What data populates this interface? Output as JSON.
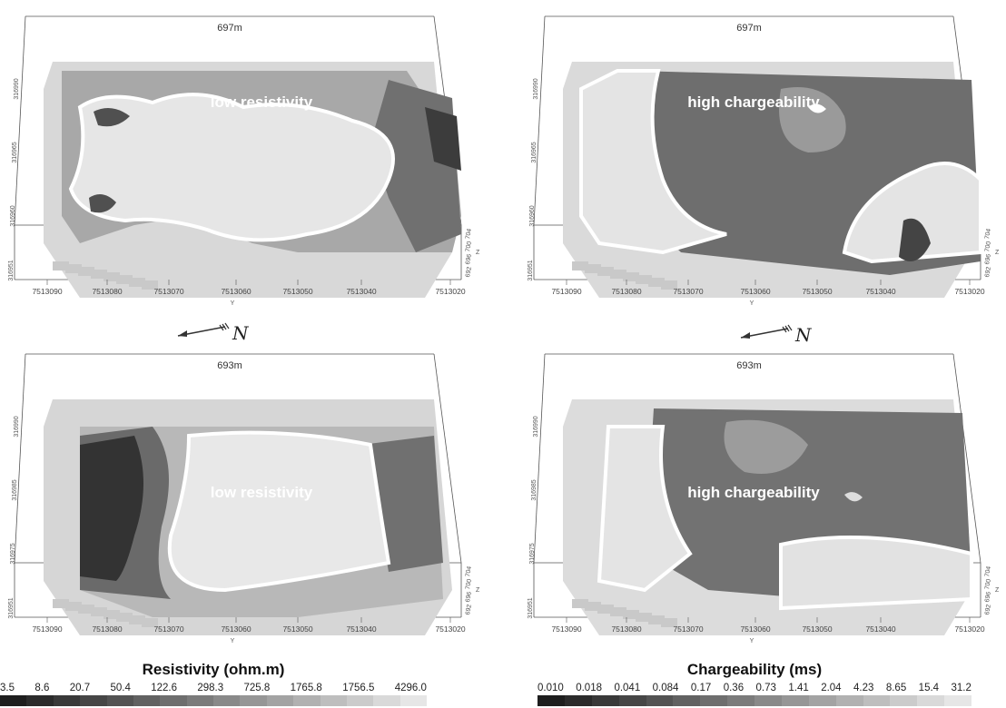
{
  "panels": [
    {
      "depth": "697m",
      "zone_label": "low resistivity",
      "x_ticks": [
        "7513090",
        "7513080",
        "7513070",
        "7513060",
        "7513050",
        "7513040",
        "7513020"
      ],
      "x_axis": "Y",
      "y_ticks": [
        "316951",
        "316960",
        "316965",
        "316990"
      ],
      "z_ticks": [
        "704",
        "700",
        "696",
        "692"
      ],
      "z_axis": "Z"
    },
    {
      "depth": "697m",
      "zone_label": "high chargeability",
      "x_ticks": [
        "7513090",
        "7513080",
        "7513070",
        "7513060",
        "7513050",
        "7513040",
        "7513020"
      ],
      "x_axis": "Y",
      "y_ticks": [
        "316951",
        "316960",
        "316965",
        "316990"
      ],
      "z_ticks": [
        "704",
        "700",
        "696",
        "692"
      ],
      "z_axis": "Z"
    },
    {
      "depth": "693m",
      "zone_label": "low resistivity",
      "x_ticks": [
        "7513090",
        "7513080",
        "7513070",
        "7513060",
        "7513050",
        "7513040",
        "7513020"
      ],
      "x_axis": "Y",
      "y_ticks": [
        "316951",
        "316975",
        "316985",
        "316990"
      ],
      "z_ticks": [
        "704",
        "700",
        "696",
        "692"
      ],
      "z_axis": "Z"
    },
    {
      "depth": "693m",
      "zone_label": "high chargeability",
      "x_ticks": [
        "7513090",
        "7513080",
        "7513070",
        "7513060",
        "7513050",
        "7513040",
        "7513020"
      ],
      "x_axis": "Y",
      "y_ticks": [
        "316951",
        "316975",
        "316985",
        "316990"
      ],
      "z_ticks": [
        "704",
        "700",
        "696",
        "692"
      ],
      "z_axis": "Z"
    }
  ],
  "north_arrow": {
    "label": "N"
  },
  "legends": [
    {
      "title": "Resistivity (ohm.m)",
      "values": [
        "3.5",
        "8.6",
        "20.7",
        "50.4",
        "122.6",
        "298.3",
        "725.8",
        "1765.8",
        "1756.5",
        "4296.0"
      ]
    },
    {
      "title": "Chargeability (ms)",
      "values": [
        "0.010",
        "0.018",
        "0.041",
        "0.084",
        "0.17",
        "0.36",
        "0.73",
        "1.41",
        "2.04",
        "4.23",
        "8.65",
        "15.4",
        "31.2"
      ]
    }
  ],
  "colors": {
    "dark": "#3a3a3a",
    "mid": "#8c8c8c",
    "light": "#e0e0e0",
    "contour": "#ffffff"
  }
}
